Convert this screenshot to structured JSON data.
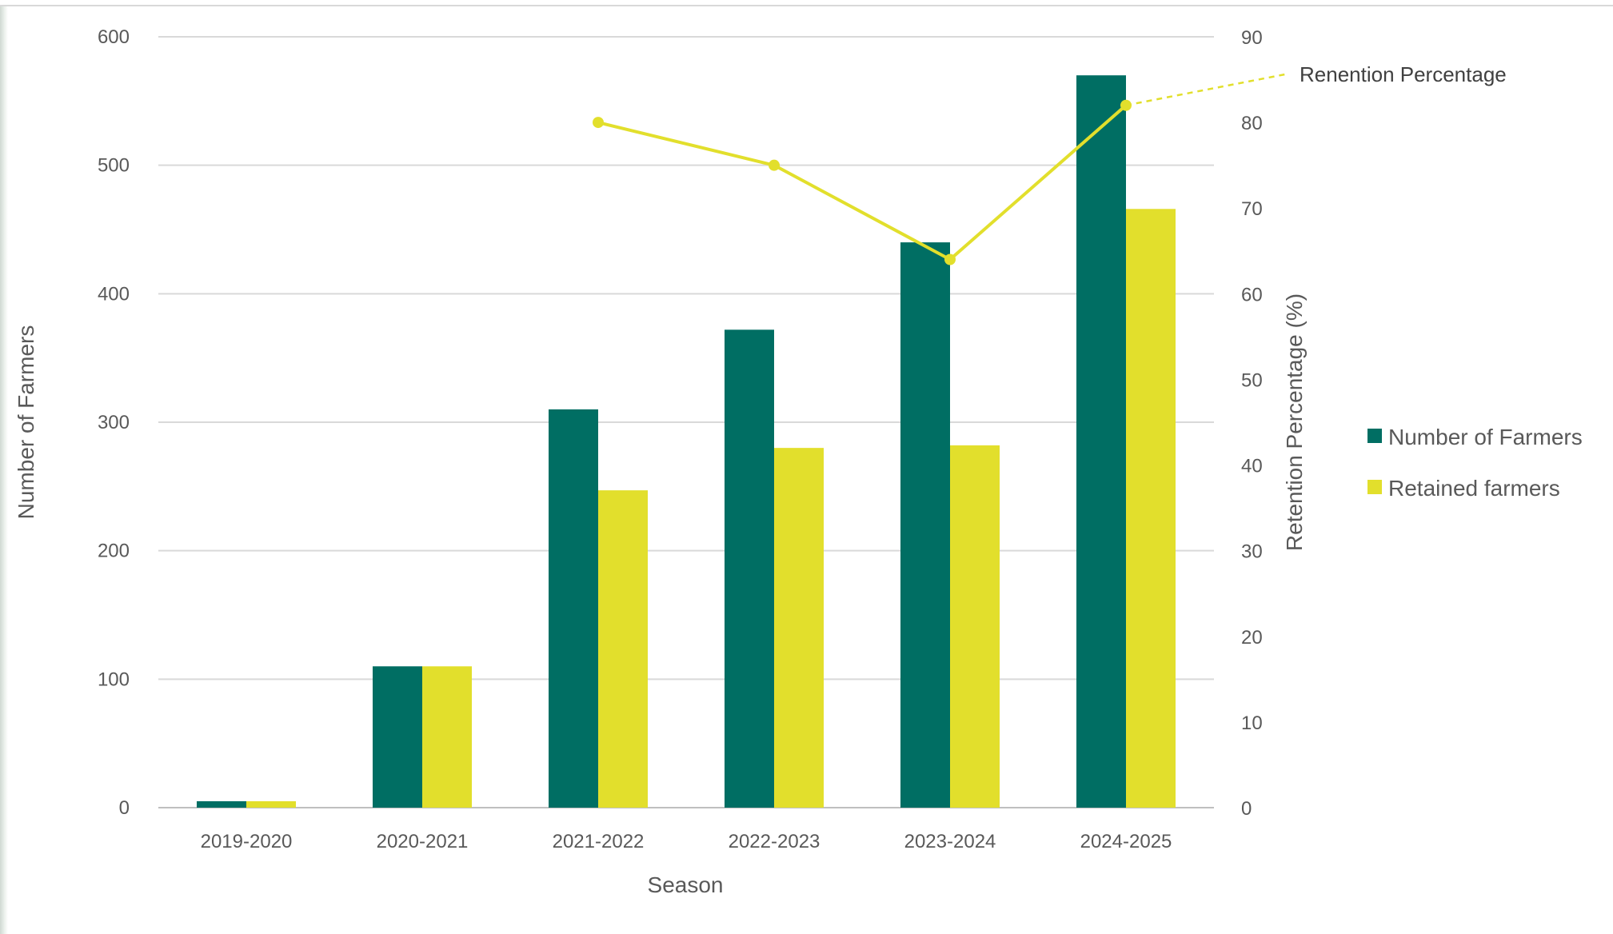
{
  "chart_data": {
    "type": "bar",
    "categories": [
      "2019-2020",
      "2020-2021",
      "2021-2022",
      "2022-2023",
      "2023-2024",
      "2024-2025"
    ],
    "series": [
      {
        "name": "Number of Farmers",
        "kind": "bar",
        "axis": "left",
        "color": "#006e63",
        "values": [
          5,
          110,
          310,
          372,
          440,
          570
        ]
      },
      {
        "name": "Retained farmers",
        "kind": "bar",
        "axis": "left",
        "color": "#e2df2c",
        "values": [
          5,
          110,
          247,
          280,
          282,
          466
        ]
      },
      {
        "name": "Renention Percentage",
        "kind": "line",
        "axis": "right",
        "color": "#e2df2c",
        "values": [
          null,
          null,
          80,
          75,
          64,
          82
        ]
      }
    ],
    "xlabel": "Season",
    "ylabel": "Number of Farmers",
    "y2label": "Retention Percentage (%)",
    "ylim": [
      0,
      600
    ],
    "yticks": [
      "0",
      "100",
      "200",
      "300",
      "400",
      "500",
      "600"
    ],
    "y2lim": [
      0,
      90
    ],
    "y2ticks": [
      "0",
      "10",
      "20",
      "30",
      "40",
      "50",
      "60",
      "70",
      "80",
      "90"
    ],
    "grid": true,
    "legend_position": "right",
    "annotation": "Renention Percentage"
  }
}
